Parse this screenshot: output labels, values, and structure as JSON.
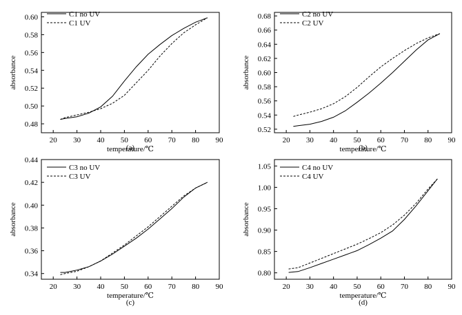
{
  "chart_data": [
    {
      "type": "line",
      "panel_label": "(a)",
      "xlabel": "temperature/℃",
      "ylabel": "absorbance",
      "xlim": [
        15,
        90
      ],
      "ylim": [
        0.47,
        0.605
      ],
      "xticks": [
        20,
        30,
        40,
        50,
        60,
        70,
        80,
        90
      ],
      "yticks": [
        0.48,
        0.5,
        0.52,
        0.54,
        0.56,
        0.58,
        0.6
      ],
      "ytick_labels": [
        "0.48",
        "0.50",
        "0.52",
        "0.54",
        "0.56",
        "0.58",
        "0.60"
      ],
      "series": [
        {
          "name": "C1 no UV",
          "style": "solid",
          "x": [
            23,
            25,
            30,
            35,
            40,
            45,
            50,
            55,
            60,
            65,
            70,
            75,
            80,
            85
          ],
          "y": [
            0.485,
            0.486,
            0.488,
            0.492,
            0.499,
            0.511,
            0.528,
            0.544,
            0.558,
            0.569,
            0.579,
            0.587,
            0.594,
            0.599
          ]
        },
        {
          "name": "C1 UV",
          "style": "dashed",
          "x": [
            23,
            25,
            30,
            35,
            40,
            45,
            50,
            55,
            60,
            65,
            70,
            75,
            80,
            85
          ],
          "y": [
            0.485,
            0.487,
            0.49,
            0.493,
            0.497,
            0.503,
            0.512,
            0.526,
            0.54,
            0.556,
            0.57,
            0.582,
            0.591,
            0.599
          ]
        }
      ]
    },
    {
      "type": "line",
      "panel_label": "(b)",
      "xlabel": "temperature/℃",
      "ylabel": "absorbance",
      "xlim": [
        15,
        90
      ],
      "ylim": [
        0.515,
        0.685
      ],
      "xticks": [
        20,
        30,
        40,
        50,
        60,
        70,
        80,
        90
      ],
      "yticks": [
        0.52,
        0.54,
        0.56,
        0.58,
        0.6,
        0.62,
        0.64,
        0.66,
        0.68
      ],
      "ytick_labels": [
        "0.52",
        "0.54",
        "0.56",
        "0.58",
        "0.60",
        "0.62",
        "0.64",
        "0.66",
        "0.68"
      ],
      "series": [
        {
          "name": "C2 no UV",
          "style": "solid",
          "x": [
            23,
            25,
            30,
            35,
            40,
            45,
            50,
            55,
            60,
            65,
            70,
            75,
            80,
            85
          ],
          "y": [
            0.524,
            0.525,
            0.527,
            0.531,
            0.537,
            0.546,
            0.558,
            0.571,
            0.585,
            0.6,
            0.616,
            0.632,
            0.646,
            0.655
          ]
        },
        {
          "name": "C2 UV",
          "style": "dashed",
          "x": [
            23,
            25,
            30,
            35,
            40,
            45,
            50,
            55,
            60,
            65,
            70,
            75,
            80,
            85
          ],
          "y": [
            0.538,
            0.54,
            0.544,
            0.549,
            0.556,
            0.566,
            0.579,
            0.594,
            0.608,
            0.62,
            0.631,
            0.641,
            0.649,
            0.655
          ]
        }
      ]
    },
    {
      "type": "line",
      "panel_label": "(c)",
      "xlabel": "temperature/℃",
      "ylabel": "absorbance",
      "xlim": [
        15,
        90
      ],
      "ylim": [
        0.335,
        0.44
      ],
      "xticks": [
        20,
        30,
        40,
        50,
        60,
        70,
        80,
        90
      ],
      "yticks": [
        0.34,
        0.36,
        0.38,
        0.4,
        0.42,
        0.44
      ],
      "ytick_labels": [
        "0.34",
        "0.36",
        "0.38",
        "0.40",
        "0.42",
        "0.44"
      ],
      "series": [
        {
          "name": "C3 no UV",
          "style": "solid",
          "x": [
            23,
            25,
            30,
            35,
            40,
            45,
            50,
            55,
            60,
            65,
            70,
            75,
            80,
            85
          ],
          "y": [
            0.341,
            0.341,
            0.343,
            0.346,
            0.351,
            0.357,
            0.364,
            0.371,
            0.379,
            0.388,
            0.397,
            0.407,
            0.415,
            0.42
          ]
        },
        {
          "name": "C3 UV",
          "style": "dashed",
          "x": [
            23,
            25,
            30,
            35,
            40,
            45,
            50,
            55,
            60,
            65,
            70,
            75,
            80,
            85
          ],
          "y": [
            0.339,
            0.34,
            0.342,
            0.346,
            0.351,
            0.358,
            0.365,
            0.373,
            0.381,
            0.39,
            0.399,
            0.408,
            0.415,
            0.42
          ]
        }
      ]
    },
    {
      "type": "line",
      "panel_label": "(d)",
      "xlabel": "temperature/℃",
      "ylabel": "absorbance",
      "xlim": [
        15,
        90
      ],
      "ylim": [
        0.785,
        1.065
      ],
      "xticks": [
        20,
        30,
        40,
        50,
        60,
        70,
        80,
        90
      ],
      "yticks": [
        0.8,
        0.85,
        0.9,
        0.95,
        1.0,
        1.05
      ],
      "ytick_labels": [
        "0.80",
        "0.85",
        "0.90",
        "0.95",
        "1.00",
        "1.05"
      ],
      "series": [
        {
          "name": "C4 no UV",
          "style": "solid",
          "x": [
            21,
            25,
            30,
            35,
            40,
            45,
            50,
            55,
            60,
            65,
            70,
            75,
            80,
            84
          ],
          "y": [
            0.801,
            0.803,
            0.812,
            0.822,
            0.832,
            0.842,
            0.852,
            0.866,
            0.881,
            0.898,
            0.925,
            0.957,
            0.992,
            1.02
          ]
        },
        {
          "name": "C4 UV",
          "style": "dashed",
          "x": [
            21,
            25,
            30,
            35,
            40,
            45,
            50,
            55,
            60,
            65,
            70,
            75,
            80,
            84
          ],
          "y": [
            0.809,
            0.812,
            0.823,
            0.834,
            0.845,
            0.856,
            0.867,
            0.88,
            0.894,
            0.912,
            0.935,
            0.963,
            0.996,
            1.02
          ]
        }
      ]
    }
  ]
}
